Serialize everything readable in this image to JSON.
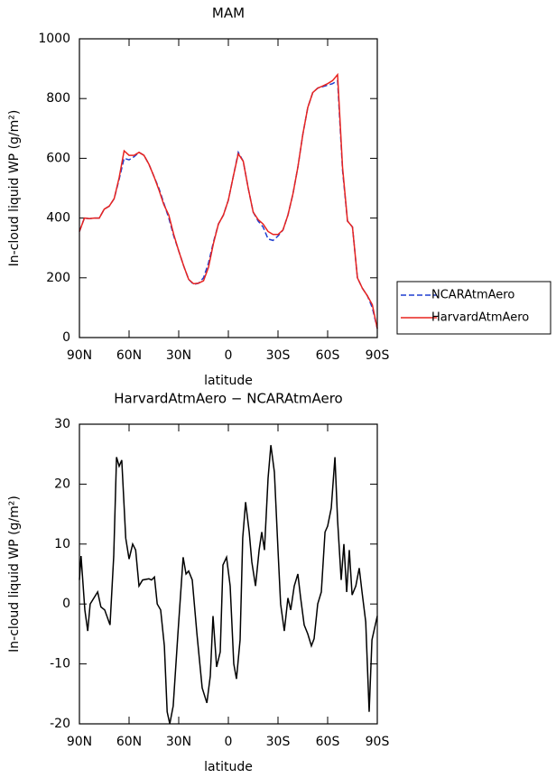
{
  "chart_data": [
    {
      "type": "line",
      "title": "MAM",
      "xlabel": "latitude",
      "ylabel": "In-cloud liquid WP (g/m²)",
      "x": [
        90,
        87,
        84,
        81,
        78,
        75,
        72,
        69,
        66,
        63,
        60,
        57,
        54,
        51,
        48,
        45,
        42,
        39,
        36,
        33,
        30,
        27,
        24,
        21,
        18,
        15,
        12,
        9,
        6,
        3,
        0,
        -3,
        -6,
        -9,
        -12,
        -15,
        -18,
        -21,
        -24,
        -27,
        -30,
        -33,
        -36,
        -39,
        -42,
        -45,
        -48,
        -51,
        -54,
        -57,
        -60,
        -63,
        -66,
        -69,
        -72,
        -75,
        -78,
        -81,
        -84,
        -87,
        -90
      ],
      "xlim": [
        90,
        -90
      ],
      "xticks": [
        {
          "value": 90,
          "label": "90N"
        },
        {
          "value": 60,
          "label": "60N"
        },
        {
          "value": 30,
          "label": "30N"
        },
        0,
        {
          "value": -30,
          "label": "30S"
        },
        {
          "value": -60,
          "label": "60S"
        },
        {
          "value": -90,
          "label": "90S"
        }
      ],
      "ylim": [
        0,
        1000
      ],
      "yticks": [
        0,
        200,
        400,
        600,
        800,
        1000
      ],
      "legend": "outside-right",
      "series": [
        {
          "name": "NCARAtmAero",
          "color": "#1f3fd0",
          "line_style": "dashed",
          "values": [
            355,
            400,
            398,
            400,
            400,
            430,
            440,
            465,
            530,
            600,
            595,
            605,
            620,
            610,
            580,
            540,
            500,
            450,
            400,
            340,
            290,
            240,
            195,
            178,
            182,
            200,
            250,
            320,
            380,
            410,
            460,
            540,
            620,
            590,
            500,
            420,
            390,
            370,
            330,
            325,
            340,
            360,
            410,
            480,
            570,
            680,
            770,
            820,
            835,
            840,
            845,
            850,
            860,
            560,
            390,
            370,
            200,
            165,
            140,
            100,
            30
          ]
        },
        {
          "name": "HarvardAtmAero",
          "color": "#e8231f",
          "line_style": "solid",
          "values": [
            355,
            400,
            398,
            400,
            400,
            430,
            440,
            465,
            535,
            625,
            610,
            610,
            620,
            610,
            580,
            540,
            495,
            445,
            410,
            345,
            290,
            240,
            195,
            180,
            182,
            190,
            235,
            315,
            380,
            410,
            460,
            540,
            615,
            590,
            500,
            420,
            395,
            380,
            355,
            345,
            345,
            360,
            410,
            480,
            570,
            680,
            770,
            820,
            835,
            842,
            850,
            860,
            880,
            570,
            390,
            370,
            200,
            165,
            140,
            110,
            30
          ]
        }
      ]
    },
    {
      "type": "line",
      "title": "HarvardAtmAero − NCARAtmAero",
      "xlabel": "latitude",
      "ylabel": "In-cloud liquid WP (g/m²)",
      "x": [
        90,
        89,
        86.7,
        85,
        83.5,
        79,
        77,
        74.7,
        71.5,
        69.3,
        67.6,
        66,
        64.4,
        62,
        60,
        57.8,
        56,
        54,
        51.8,
        48,
        46.4,
        44.7,
        43,
        40.9,
        38.7,
        37,
        35.4,
        33.3,
        30.5,
        27.3,
        25.6,
        24,
        21.8,
        19,
        15.8,
        13,
        10.9,
        9.3,
        7.1,
        4.9,
        3.3,
        1.1,
        -1.1,
        -3.3,
        -4.9,
        -7.1,
        -8.7,
        -10.4,
        -12.6,
        -14.2,
        -16.4,
        -18.6,
        -20.2,
        -21.8,
        -24,
        -25.7,
        -27.8,
        -30,
        -31.6,
        -33.8,
        -36,
        -37.7,
        -39.8,
        -42,
        -43.7,
        -45.8,
        -48,
        -50.2,
        -51.8,
        -54,
        -56.2,
        -58.4,
        -60,
        -62.2,
        -64.4,
        -66,
        -68.2,
        -69.8,
        -71.5,
        -73.1,
        -74.8,
        -77,
        -79.1,
        -80.8,
        -83,
        -85.1,
        -86.8,
        -90
      ],
      "xlim": [
        90,
        -90
      ],
      "xticks": [
        {
          "value": 90,
          "label": "90N"
        },
        {
          "value": 60,
          "label": "60N"
        },
        {
          "value": 30,
          "label": "30N"
        },
        0,
        {
          "value": -30,
          "label": "30S"
        },
        {
          "value": -60,
          "label": "60S"
        },
        {
          "value": -90,
          "label": "90S"
        }
      ],
      "ylim": [
        -20,
        30
      ],
      "yticks": [
        -20,
        -10,
        0,
        10,
        20,
        30
      ],
      "series": [
        {
          "color": "#000000",
          "line_style": "solid",
          "values": [
            4,
            8,
            -1,
            -4.5,
            0,
            2,
            -0.5,
            -1,
            -3.5,
            8,
            24.5,
            23,
            24,
            11,
            7.5,
            10,
            9,
            3,
            4,
            4.2,
            4,
            4.5,
            0,
            -1,
            -7,
            -18,
            -20,
            -17,
            -5,
            7.8,
            5,
            5.5,
            4,
            -5,
            -14,
            -16.5,
            -12,
            -2,
            -10.5,
            -8,
            6.5,
            7.8,
            3,
            -10,
            -12.5,
            -6,
            11,
            17,
            12,
            7,
            3,
            9,
            12,
            9,
            21,
            26.5,
            22,
            9,
            0,
            -4.5,
            1,
            -1,
            3,
            5,
            1,
            -3.5,
            -5,
            -7,
            -5.8,
            0,
            2,
            12,
            13,
            16,
            24.5,
            14,
            4,
            10,
            2,
            9,
            1.5,
            3,
            6,
            2,
            -3,
            -18,
            -6,
            -2
          ]
        }
      ]
    }
  ]
}
